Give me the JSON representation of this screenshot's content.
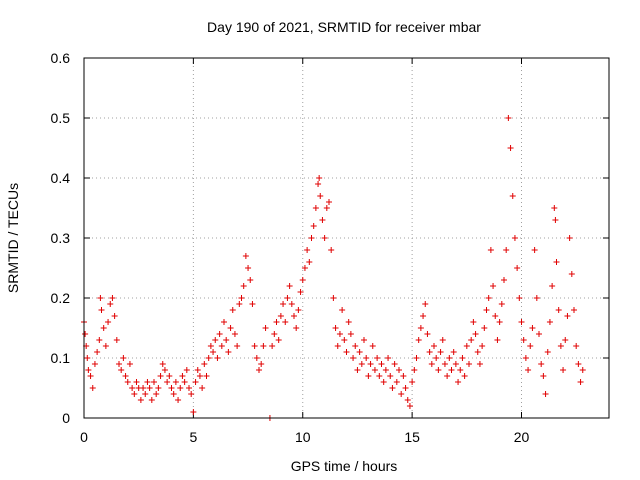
{
  "chart_data": {
    "type": "scatter",
    "title": "Day 190 of 2021, SRMTID for receiver mbar",
    "xlabel": "GPS time / hours",
    "ylabel": "SRMTID / TECUs",
    "xlim": [
      0,
      24
    ],
    "ylim": [
      0,
      0.6
    ],
    "xticks": [
      0,
      5,
      10,
      15,
      20
    ],
    "xtick_labels": [
      "0",
      "5",
      "10",
      "15",
      "20"
    ],
    "yticks": [
      0,
      0.1,
      0.2,
      0.3,
      0.4,
      0.5,
      0.6
    ],
    "ytick_labels": [
      "0",
      "0.1",
      "0.2",
      "0.3",
      "0.4",
      "0.5",
      "0.6"
    ],
    "grid": true,
    "marker": "+",
    "colors": {
      "series": "#e00000",
      "grid": "#a0a0a0",
      "axis": "#000000"
    },
    "series": [
      {
        "name": "SRMTID",
        "points": [
          [
            0.0,
            0.16
          ],
          [
            0.05,
            0.14
          ],
          [
            0.1,
            0.12
          ],
          [
            0.15,
            0.1
          ],
          [
            0.2,
            0.08
          ],
          [
            0.3,
            0.07
          ],
          [
            0.4,
            0.05
          ],
          [
            0.5,
            0.09
          ],
          [
            0.6,
            0.11
          ],
          [
            0.7,
            0.13
          ],
          [
            0.75,
            0.2
          ],
          [
            0.8,
            0.18
          ],
          [
            0.9,
            0.15
          ],
          [
            1.0,
            0.12
          ],
          [
            1.1,
            0.16
          ],
          [
            1.2,
            0.19
          ],
          [
            1.3,
            0.2
          ],
          [
            1.4,
            0.17
          ],
          [
            1.5,
            0.13
          ],
          [
            1.6,
            0.09
          ],
          [
            1.7,
            0.08
          ],
          [
            1.8,
            0.1
          ],
          [
            1.9,
            0.07
          ],
          [
            2.0,
            0.06
          ],
          [
            2.1,
            0.09
          ],
          [
            2.2,
            0.05
          ],
          [
            2.3,
            0.04
          ],
          [
            2.4,
            0.06
          ],
          [
            2.5,
            0.05
          ],
          [
            2.6,
            0.03
          ],
          [
            2.7,
            0.05
          ],
          [
            2.8,
            0.04
          ],
          [
            2.9,
            0.06
          ],
          [
            3.0,
            0.05
          ],
          [
            3.1,
            0.03
          ],
          [
            3.2,
            0.06
          ],
          [
            3.3,
            0.04
          ],
          [
            3.4,
            0.05
          ],
          [
            3.5,
            0.07
          ],
          [
            3.6,
            0.09
          ],
          [
            3.7,
            0.08
          ],
          [
            3.8,
            0.06
          ],
          [
            3.9,
            0.07
          ],
          [
            4.0,
            0.05
          ],
          [
            4.1,
            0.04
          ],
          [
            4.2,
            0.06
          ],
          [
            4.3,
            0.03
          ],
          [
            4.4,
            0.05
          ],
          [
            4.5,
            0.07
          ],
          [
            4.6,
            0.06
          ],
          [
            4.7,
            0.08
          ],
          [
            4.8,
            0.05
          ],
          [
            4.9,
            0.04
          ],
          [
            5.0,
            0.01
          ],
          [
            5.1,
            0.06
          ],
          [
            5.2,
            0.08
          ],
          [
            5.3,
            0.07
          ],
          [
            5.4,
            0.05
          ],
          [
            5.5,
            0.09
          ],
          [
            5.6,
            0.07
          ],
          [
            5.7,
            0.1
          ],
          [
            5.8,
            0.12
          ],
          [
            5.9,
            0.11
          ],
          [
            6.0,
            0.13
          ],
          [
            6.1,
            0.1
          ],
          [
            6.2,
            0.14
          ],
          [
            6.3,
            0.12
          ],
          [
            6.4,
            0.16
          ],
          [
            6.5,
            0.13
          ],
          [
            6.6,
            0.11
          ],
          [
            6.7,
            0.15
          ],
          [
            6.8,
            0.18
          ],
          [
            6.9,
            0.14
          ],
          [
            7.0,
            0.12
          ],
          [
            7.1,
            0.19
          ],
          [
            7.2,
            0.2
          ],
          [
            7.3,
            0.22
          ],
          [
            7.4,
            0.27
          ],
          [
            7.5,
            0.25
          ],
          [
            7.6,
            0.23
          ],
          [
            7.7,
            0.19
          ],
          [
            7.8,
            0.12
          ],
          [
            7.9,
            0.1
          ],
          [
            8.0,
            0.08
          ],
          [
            8.1,
            0.09
          ],
          [
            8.2,
            0.12
          ],
          [
            8.3,
            0.15
          ],
          [
            8.5,
            0.0
          ],
          [
            8.6,
            0.12
          ],
          [
            8.7,
            0.14
          ],
          [
            8.8,
            0.16
          ],
          [
            8.9,
            0.13
          ],
          [
            9.0,
            0.17
          ],
          [
            9.1,
            0.19
          ],
          [
            9.2,
            0.16
          ],
          [
            9.3,
            0.2
          ],
          [
            9.4,
            0.22
          ],
          [
            9.5,
            0.19
          ],
          [
            9.6,
            0.17
          ],
          [
            9.7,
            0.15
          ],
          [
            9.8,
            0.18
          ],
          [
            9.9,
            0.21
          ],
          [
            10.0,
            0.23
          ],
          [
            10.1,
            0.25
          ],
          [
            10.2,
            0.28
          ],
          [
            10.3,
            0.26
          ],
          [
            10.4,
            0.3
          ],
          [
            10.5,
            0.32
          ],
          [
            10.6,
            0.35
          ],
          [
            10.7,
            0.39
          ],
          [
            10.75,
            0.4
          ],
          [
            10.8,
            0.37
          ],
          [
            10.9,
            0.33
          ],
          [
            11.0,
            0.3
          ],
          [
            11.1,
            0.35
          ],
          [
            11.2,
            0.36
          ],
          [
            11.3,
            0.28
          ],
          [
            11.4,
            0.2
          ],
          [
            11.5,
            0.15
          ],
          [
            11.6,
            0.12
          ],
          [
            11.7,
            0.14
          ],
          [
            11.8,
            0.18
          ],
          [
            11.9,
            0.13
          ],
          [
            12.0,
            0.11
          ],
          [
            12.1,
            0.16
          ],
          [
            12.2,
            0.14
          ],
          [
            12.3,
            0.1
          ],
          [
            12.4,
            0.12
          ],
          [
            12.5,
            0.08
          ],
          [
            12.6,
            0.11
          ],
          [
            12.7,
            0.09
          ],
          [
            12.8,
            0.13
          ],
          [
            12.9,
            0.1
          ],
          [
            13.0,
            0.07
          ],
          [
            13.1,
            0.09
          ],
          [
            13.2,
            0.12
          ],
          [
            13.3,
            0.08
          ],
          [
            13.4,
            0.1
          ],
          [
            13.5,
            0.07
          ],
          [
            13.6,
            0.09
          ],
          [
            13.7,
            0.06
          ],
          [
            13.8,
            0.08
          ],
          [
            13.9,
            0.1
          ],
          [
            14.0,
            0.07
          ],
          [
            14.1,
            0.05
          ],
          [
            14.2,
            0.09
          ],
          [
            14.3,
            0.06
          ],
          [
            14.4,
            0.08
          ],
          [
            14.5,
            0.04
          ],
          [
            14.6,
            0.07
          ],
          [
            14.7,
            0.05
          ],
          [
            14.8,
            0.03
          ],
          [
            14.9,
            0.02
          ],
          [
            15.0,
            0.06
          ],
          [
            15.1,
            0.08
          ],
          [
            15.2,
            0.1
          ],
          [
            15.3,
            0.13
          ],
          [
            15.4,
            0.15
          ],
          [
            15.5,
            0.17
          ],
          [
            15.6,
            0.19
          ],
          [
            15.7,
            0.14
          ],
          [
            15.8,
            0.11
          ],
          [
            15.9,
            0.09
          ],
          [
            16.0,
            0.12
          ],
          [
            16.1,
            0.1
          ],
          [
            16.2,
            0.08
          ],
          [
            16.3,
            0.11
          ],
          [
            16.4,
            0.13
          ],
          [
            16.5,
            0.09
          ],
          [
            16.6,
            0.07
          ],
          [
            16.7,
            0.1
          ],
          [
            16.8,
            0.08
          ],
          [
            16.9,
            0.11
          ],
          [
            17.0,
            0.09
          ],
          [
            17.1,
            0.06
          ],
          [
            17.2,
            0.08
          ],
          [
            17.3,
            0.1
          ],
          [
            17.4,
            0.07
          ],
          [
            17.5,
            0.12
          ],
          [
            17.6,
            0.09
          ],
          [
            17.7,
            0.13
          ],
          [
            17.8,
            0.16
          ],
          [
            17.9,
            0.14
          ],
          [
            18.0,
            0.11
          ],
          [
            18.1,
            0.09
          ],
          [
            18.2,
            0.12
          ],
          [
            18.3,
            0.15
          ],
          [
            18.4,
            0.18
          ],
          [
            18.5,
            0.2
          ],
          [
            18.6,
            0.28
          ],
          [
            18.7,
            0.22
          ],
          [
            18.8,
            0.17
          ],
          [
            18.9,
            0.13
          ],
          [
            19.0,
            0.16
          ],
          [
            19.1,
            0.19
          ],
          [
            19.2,
            0.23
          ],
          [
            19.3,
            0.28
          ],
          [
            19.4,
            0.5
          ],
          [
            19.5,
            0.45
          ],
          [
            19.6,
            0.37
          ],
          [
            19.7,
            0.3
          ],
          [
            19.8,
            0.25
          ],
          [
            19.9,
            0.2
          ],
          [
            20.0,
            0.16
          ],
          [
            20.1,
            0.13
          ],
          [
            20.2,
            0.1
          ],
          [
            20.3,
            0.08
          ],
          [
            20.4,
            0.12
          ],
          [
            20.5,
            0.15
          ],
          [
            20.6,
            0.28
          ],
          [
            20.7,
            0.2
          ],
          [
            20.8,
            0.14
          ],
          [
            20.9,
            0.09
          ],
          [
            21.0,
            0.07
          ],
          [
            21.1,
            0.04
          ],
          [
            21.2,
            0.11
          ],
          [
            21.3,
            0.16
          ],
          [
            21.4,
            0.22
          ],
          [
            21.5,
            0.35
          ],
          [
            21.55,
            0.33
          ],
          [
            21.6,
            0.26
          ],
          [
            21.7,
            0.18
          ],
          [
            21.8,
            0.12
          ],
          [
            21.9,
            0.08
          ],
          [
            22.0,
            0.13
          ],
          [
            22.1,
            0.17
          ],
          [
            22.2,
            0.3
          ],
          [
            22.3,
            0.24
          ],
          [
            22.4,
            0.18
          ],
          [
            22.5,
            0.12
          ],
          [
            22.6,
            0.09
          ],
          [
            22.7,
            0.06
          ],
          [
            22.8,
            0.08
          ]
        ]
      }
    ]
  }
}
